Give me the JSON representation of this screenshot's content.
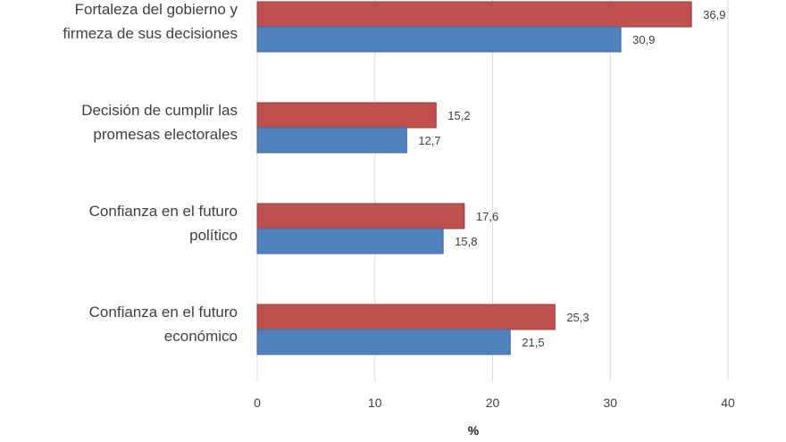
{
  "chart_data": {
    "type": "bar",
    "orientation": "horizontal",
    "categories": [
      [
        "Fortaleza del gobierno y",
        "firmeza de sus decisiones"
      ],
      [
        "Decisión de cumplir las",
        "promesas electorales"
      ],
      [
        "Confianza en el futuro",
        "político"
      ],
      [
        "Confianza en el futuro",
        "económico"
      ]
    ],
    "series": [
      {
        "values": [
          36.9,
          15.2,
          17.6,
          25.3
        ],
        "value_labels": [
          "36,9",
          "15,2",
          "17,6",
          "25,3"
        ],
        "color": "#c0504d"
      },
      {
        "values": [
          30.9,
          12.7,
          15.8,
          21.5
        ],
        "value_labels": [
          "30,9",
          "12,7",
          "15,8",
          "21,5"
        ],
        "color": "#4f81bd"
      }
    ],
    "xlabel": "%",
    "xlim": [
      0,
      40
    ],
    "xticks": [
      0,
      10,
      20,
      30,
      40
    ],
    "xtick_labels": [
      "0",
      "10",
      "20",
      "30",
      "40"
    ],
    "grid": true,
    "legend": false
  }
}
